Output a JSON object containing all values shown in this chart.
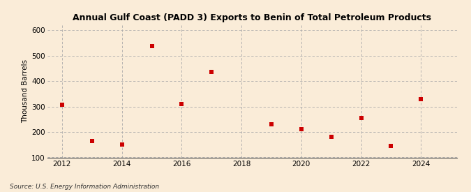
{
  "title": "Annual Gulf Coast (PADD 3) Exports to Benin of Total Petroleum Products",
  "ylabel": "Thousand Barrels",
  "source": "Source: U.S. Energy Information Administration",
  "background_color": "#faecd8",
  "plot_bg_color": "#faecd8",
  "marker_color": "#cc0000",
  "marker_size": 4,
  "xlim": [
    2011.5,
    2025.2
  ],
  "ylim": [
    100,
    620
  ],
  "yticks": [
    100,
    200,
    300,
    400,
    500,
    600
  ],
  "xticks": [
    2012,
    2014,
    2016,
    2018,
    2020,
    2022,
    2024
  ],
  "data_x": [
    2012,
    2013,
    2014,
    2015,
    2016,
    2017,
    2019,
    2020,
    2021,
    2022,
    2023,
    2024
  ],
  "data_y": [
    307,
    165,
    150,
    537,
    310,
    437,
    230,
    210,
    182,
    255,
    145,
    328
  ]
}
